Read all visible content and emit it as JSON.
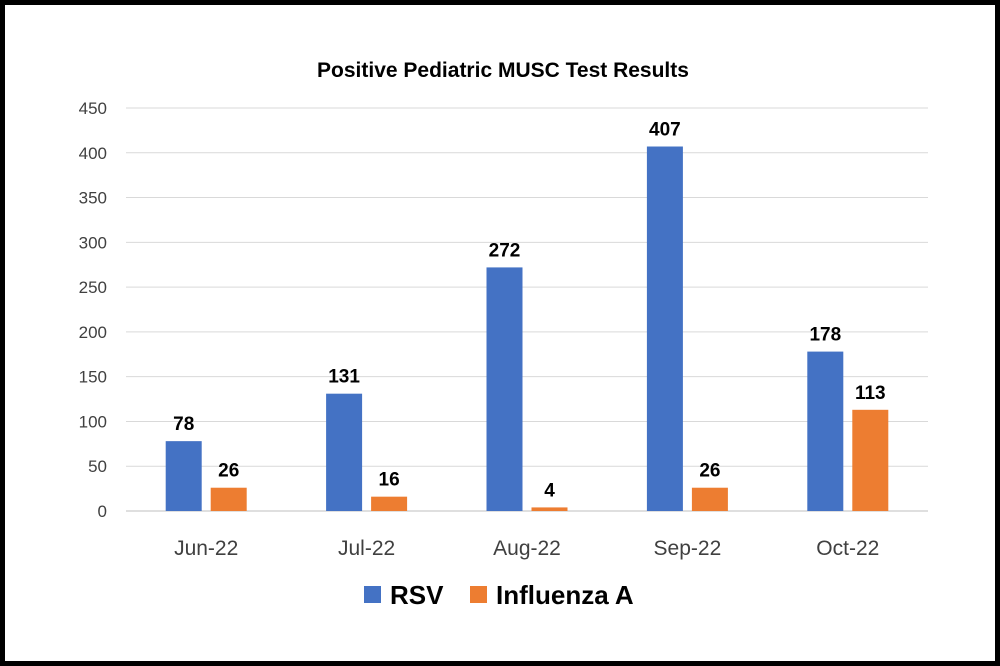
{
  "chart_data": {
    "type": "bar",
    "title": "Positive Pediatric MUSC Test Results",
    "xlabel": "",
    "ylabel": "",
    "categories": [
      "Jun-22",
      "Jul-22",
      "Aug-22",
      "Sep-22",
      "Oct-22"
    ],
    "series": [
      {
        "name": "RSV",
        "values": [
          78,
          131,
          272,
          407,
          178
        ],
        "color": "#4472C4"
      },
      {
        "name": "Influenza A",
        "values": [
          26,
          16,
          4,
          26,
          113
        ],
        "color": "#ED7D31"
      }
    ],
    "ylim": [
      0,
      450
    ],
    "yticks": [
      "0",
      "50",
      "100",
      "150",
      "200",
      "250",
      "300",
      "350",
      "400",
      "450"
    ],
    "grid": true,
    "legend_position": "bottom",
    "data_labels": true
  }
}
